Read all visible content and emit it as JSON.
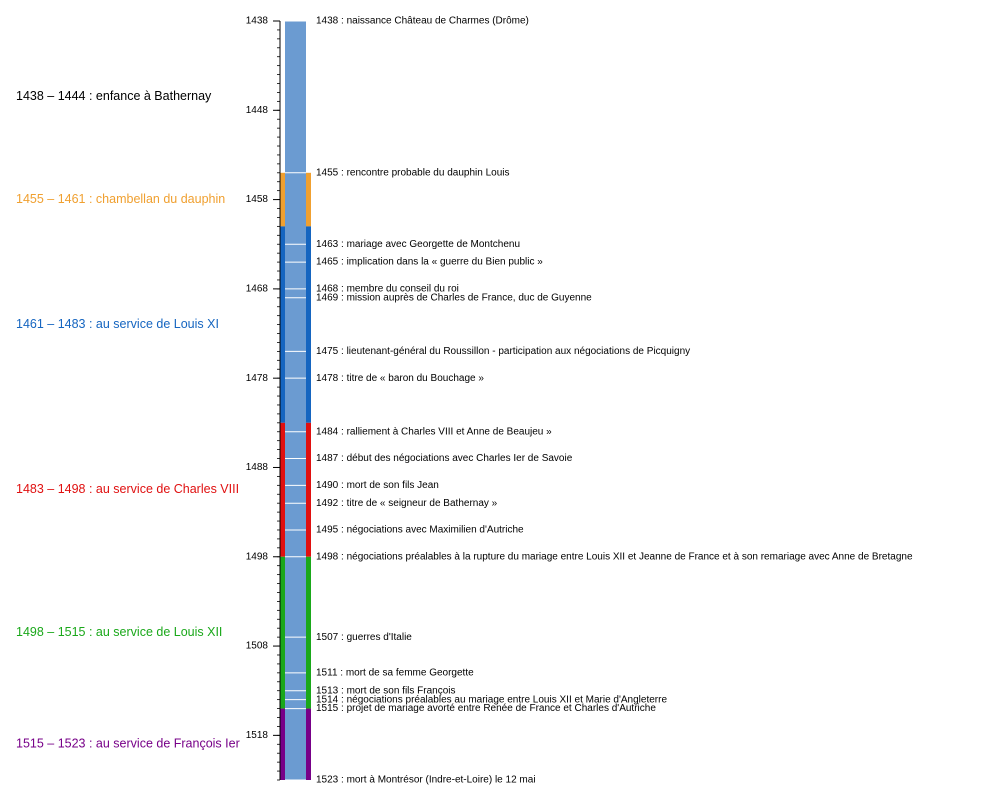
{
  "chart_data": {
    "type": "timeline",
    "ylim": [
      1438,
      1523
    ],
    "yticks": [
      1438,
      1448,
      1458,
      1468,
      1478,
      1488,
      1498,
      1508,
      1518
    ],
    "minor_tick_step": 1,
    "bar_color": "#6b9bd1",
    "periods": [
      {
        "label": "1438 – 1444 : enfance à Bathernay",
        "start": 1438,
        "end": 1444,
        "color": "#000000",
        "strip": false
      },
      {
        "label": "1455 – 1461 : chambellan du dauphin",
        "start": 1455,
        "end": 1461,
        "color": "#f0a030",
        "strip": true
      },
      {
        "label": "1461 – 1483 : au service de Louis XI",
        "start": 1461,
        "end": 1483,
        "color": "#1565c0",
        "strip": true
      },
      {
        "label": "1483 – 1498 : au service de Charles VIII",
        "start": 1483,
        "end": 1498,
        "color": "#e01010",
        "strip": true
      },
      {
        "label": "1498 – 1515 : au service de Louis XII",
        "start": 1498,
        "end": 1515,
        "color": "#1aa81a",
        "strip": true
      },
      {
        "label": "1515 – 1523 : au service de François Ier",
        "start": 1515,
        "end": 1523,
        "color": "#770088",
        "strip": true
      }
    ],
    "events": [
      {
        "year": 1438,
        "label": "1438 : naissance Château de Charmes  (Drôme)"
      },
      {
        "year": 1455,
        "label": "1455 : rencontre probable du dauphin Louis"
      },
      {
        "year": 1463,
        "label": "1463 : mariage avec Georgette de Montchenu"
      },
      {
        "year": 1465,
        "label": "1465 : implication dans la « guerre du Bien public »"
      },
      {
        "year": 1468,
        "label": "1468 : membre du conseil du roi"
      },
      {
        "year": 1469,
        "label": "1469 : mission auprès de Charles de France, duc de Guyenne"
      },
      {
        "year": 1475,
        "label": "1475 : lieutenant-général du Roussillon - participation aux négociations de Picquigny"
      },
      {
        "year": 1478,
        "label": "1478 : titre de « baron du Bouchage »"
      },
      {
        "year": 1484,
        "label": "1484 : ralliement à Charles VIII et Anne de Beaujeu »"
      },
      {
        "year": 1487,
        "label": "1487 : début des négociations avec Charles Ier de Savoie"
      },
      {
        "year": 1490,
        "label": "1490 : mort de son fils Jean"
      },
      {
        "year": 1492,
        "label": "1492 : titre de « seigneur de Bathernay »"
      },
      {
        "year": 1495,
        "label": "1495 : négociations avec Maximilien d'Autriche"
      },
      {
        "year": 1498,
        "label": "1498 : négociations préalables à la rupture du mariage entre Louis XII et Jeanne de France et à son remariage avec Anne de Bretagne"
      },
      {
        "year": 1507,
        "label": "1507 : guerres d'Italie"
      },
      {
        "year": 1511,
        "label": "1511 : mort de sa femme Georgette"
      },
      {
        "year": 1513,
        "label": "1513 : mort de son fils François"
      },
      {
        "year": 1514,
        "label": "1514 : négociations préalables au mariage entre Louis XII et Marie d'Angleterre"
      },
      {
        "year": 1515,
        "label": "1515 : projet de mariage avorté entre Renée de France et Charles d'Autriche"
      },
      {
        "year": 1523,
        "label": "1523 : mort à Montrésor (Indre-et-Loire) le 12 mai"
      }
    ]
  }
}
